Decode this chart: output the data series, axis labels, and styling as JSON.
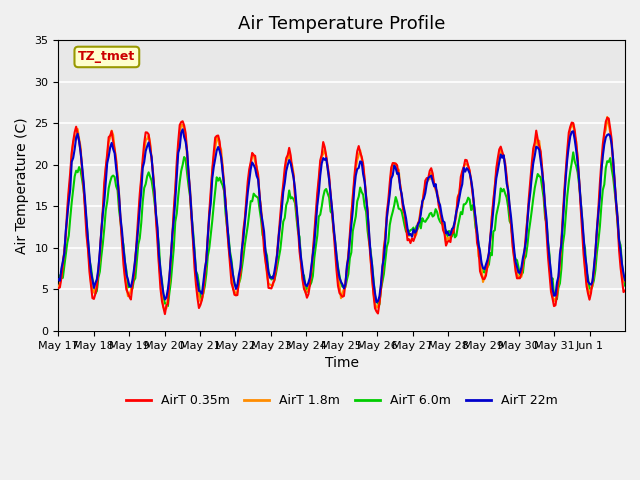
{
  "title": "Air Temperature Profile",
  "xlabel": "Time",
  "ylabel": "Air Temperature (C)",
  "ylim": [
    0,
    35
  ],
  "yticks": [
    0,
    5,
    10,
    15,
    20,
    25,
    30,
    35
  ],
  "plot_bg_color": "#e8e8e8",
  "fig_bg_color": "#f0f0f0",
  "grid_color": "#ffffff",
  "annotation_text": "TZ_tmet",
  "annotation_color": "#cc0000",
  "annotation_bg": "#ffffcc",
  "annotation_border": "#999900",
  "legend_labels": [
    "AirT 0.35m",
    "AirT 1.8m",
    "AirT 6.0m",
    "AirT 22m"
  ],
  "line_colors": [
    "#ff0000",
    "#ff8c00",
    "#00cc00",
    "#0000cc"
  ],
  "line_width": 1.5,
  "x_tick_labels": [
    "May 17",
    "May 18",
    "May 19",
    "May 20",
    "May 21",
    "May 22",
    "May 23",
    "May 24",
    "May 25",
    "May 26",
    "May 27",
    "May 28",
    "May 29",
    "May 30",
    "May 31",
    "Jun 1"
  ],
  "title_fontsize": 13,
  "axis_fontsize": 10,
  "tick_fontsize": 8
}
